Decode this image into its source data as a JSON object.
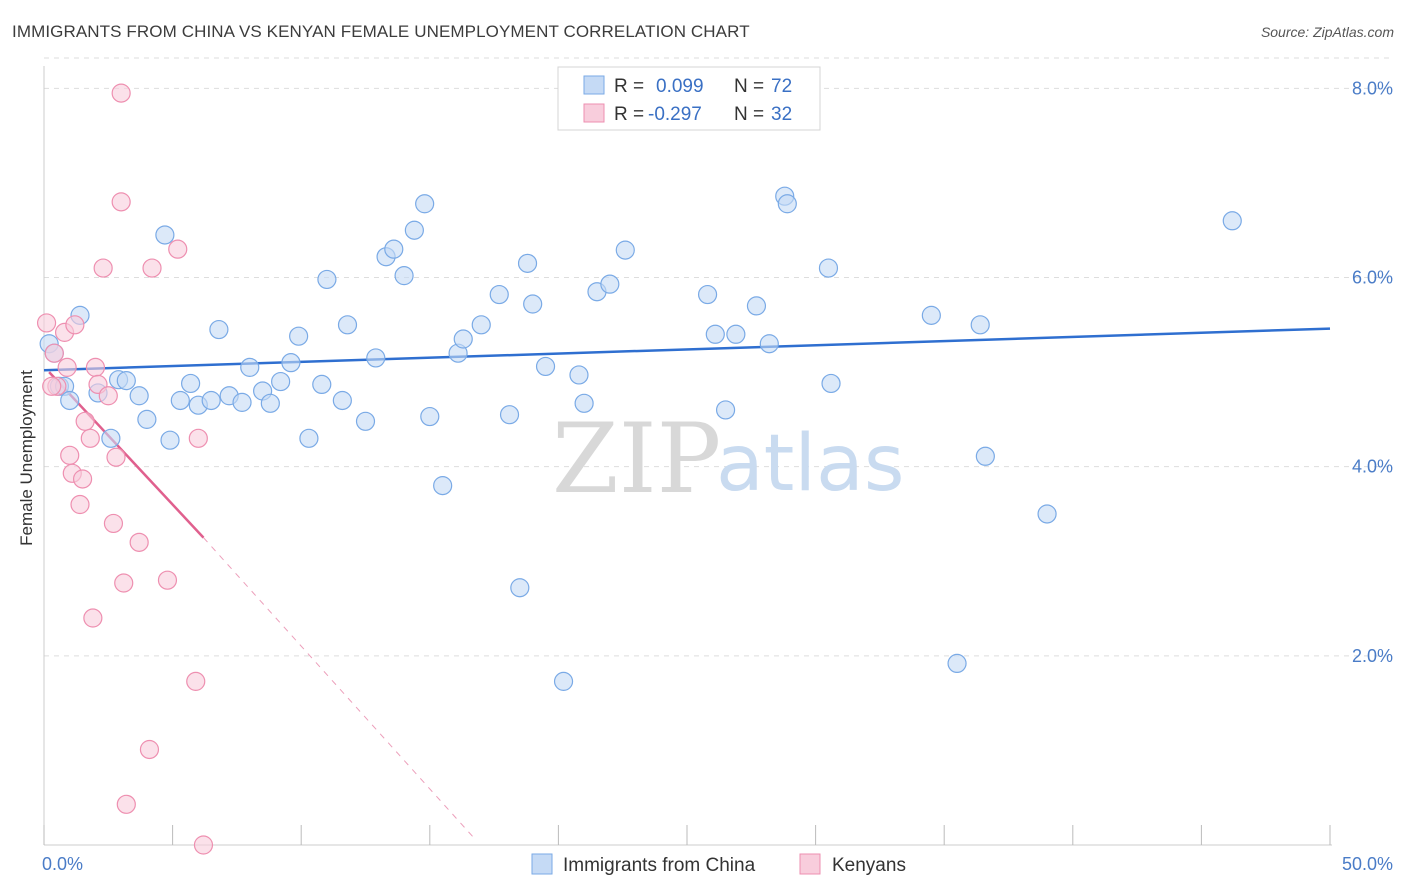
{
  "title": "IMMIGRANTS FROM CHINA VS KENYAN FEMALE UNEMPLOYMENT CORRELATION CHART",
  "source": "Source: ZipAtlas.com",
  "colors": {
    "blue": "#7aaae6",
    "blue_fill": "#c5daf5",
    "blue_line": "#2f6fd0",
    "pink": "#ee8fb0",
    "pink_fill": "#f8cddc",
    "pink_line": "#e0608e",
    "grid": "#dddddd"
  },
  "legend_top": {
    "rows": [
      {
        "r_label": "R =",
        "r_value": "0.099",
        "n_label": "N =",
        "n_value": "72"
      },
      {
        "r_label": "R =",
        "r_value": "-0.297",
        "n_label": "N =",
        "n_value": "32"
      }
    ]
  },
  "watermark": {
    "zip": "ZIP",
    "atlas": "atlas"
  },
  "chart_data": {
    "type": "scatter",
    "title": "IMMIGRANTS FROM CHINA VS KENYAN FEMALE UNEMPLOYMENT CORRELATION CHART",
    "xlabel": "",
    "ylabel": "Female Unemployment",
    "xlim": [
      0,
      50
    ],
    "ylim": [
      0,
      8.3
    ],
    "x_tick_labels": [
      "0.0%",
      "50.0%"
    ],
    "y_ticks": [
      2.0,
      4.0,
      6.0,
      8.0
    ],
    "y_tick_labels": [
      "2.0%",
      "4.0%",
      "6.0%",
      "8.0%"
    ],
    "grid": true,
    "legend_position": "bottom",
    "series": [
      {
        "name": "Immigrants from China",
        "color": "#7aaae6",
        "trend": {
          "x": [
            0,
            50
          ],
          "y": [
            5.02,
            5.46
          ]
        },
        "points": [
          [
            0.2,
            5.3
          ],
          [
            0.4,
            5.2
          ],
          [
            0.6,
            4.85
          ],
          [
            0.8,
            4.85
          ],
          [
            1.0,
            4.7
          ],
          [
            1.4,
            5.6
          ],
          [
            2.1,
            4.78
          ],
          [
            2.6,
            4.3
          ],
          [
            2.9,
            4.92
          ],
          [
            3.2,
            4.91
          ],
          [
            3.7,
            4.75
          ],
          [
            4.0,
            4.5
          ],
          [
            4.7,
            6.45
          ],
          [
            4.9,
            4.28
          ],
          [
            5.3,
            4.7
          ],
          [
            5.7,
            4.88
          ],
          [
            6.0,
            4.65
          ],
          [
            6.5,
            4.7
          ],
          [
            6.8,
            5.45
          ],
          [
            7.2,
            4.75
          ],
          [
            7.7,
            4.68
          ],
          [
            8.0,
            5.05
          ],
          [
            8.5,
            4.8
          ],
          [
            8.8,
            4.67
          ],
          [
            9.2,
            4.9
          ],
          [
            9.6,
            5.1
          ],
          [
            9.9,
            5.38
          ],
          [
            10.3,
            4.3
          ],
          [
            10.8,
            4.87
          ],
          [
            11.0,
            5.98
          ],
          [
            11.6,
            4.7
          ],
          [
            11.8,
            5.5
          ],
          [
            12.5,
            4.48
          ],
          [
            12.9,
            5.15
          ],
          [
            13.3,
            6.22
          ],
          [
            13.6,
            6.3
          ],
          [
            14.0,
            6.02
          ],
          [
            14.4,
            6.5
          ],
          [
            14.8,
            6.78
          ],
          [
            15.0,
            4.53
          ],
          [
            15.5,
            3.8
          ],
          [
            16.1,
            5.2
          ],
          [
            16.3,
            5.35
          ],
          [
            17.0,
            5.5
          ],
          [
            17.7,
            5.82
          ],
          [
            18.1,
            4.55
          ],
          [
            18.5,
            2.72
          ],
          [
            18.8,
            6.15
          ],
          [
            19.0,
            5.72
          ],
          [
            19.5,
            5.06
          ],
          [
            20.2,
            1.73
          ],
          [
            20.8,
            4.97
          ],
          [
            21.0,
            4.67
          ],
          [
            21.5,
            5.85
          ],
          [
            22.0,
            5.93
          ],
          [
            22.6,
            6.29
          ],
          [
            25.8,
            5.82
          ],
          [
            26.1,
            5.4
          ],
          [
            26.5,
            4.6
          ],
          [
            26.9,
            5.4
          ],
          [
            27.7,
            5.7
          ],
          [
            28.2,
            5.3
          ],
          [
            28.8,
            6.86
          ],
          [
            28.9,
            6.78
          ],
          [
            30.5,
            6.1
          ],
          [
            30.6,
            4.88
          ],
          [
            34.5,
            5.6
          ],
          [
            35.5,
            1.92
          ],
          [
            36.4,
            5.5
          ],
          [
            36.6,
            4.11
          ],
          [
            39.0,
            3.5
          ],
          [
            46.2,
            6.6
          ]
        ]
      },
      {
        "name": "Kenyans",
        "color": "#ee8fb0",
        "trend": {
          "x": [
            0.2,
            6.2
          ],
          "y": [
            5.0,
            3.25
          ],
          "extend_to": [
            16.7,
            0.08
          ]
        },
        "points": [
          [
            0.1,
            5.52
          ],
          [
            0.4,
            5.2
          ],
          [
            0.5,
            4.85
          ],
          [
            0.8,
            5.42
          ],
          [
            0.9,
            5.05
          ],
          [
            1.0,
            4.12
          ],
          [
            1.1,
            3.93
          ],
          [
            1.2,
            5.5
          ],
          [
            1.4,
            3.6
          ],
          [
            1.5,
            3.87
          ],
          [
            1.6,
            4.48
          ],
          [
            1.8,
            4.3
          ],
          [
            1.9,
            2.4
          ],
          [
            2.0,
            5.05
          ],
          [
            2.1,
            4.87
          ],
          [
            2.3,
            6.1
          ],
          [
            2.5,
            4.75
          ],
          [
            2.7,
            3.4
          ],
          [
            2.8,
            4.1
          ],
          [
            3.0,
            6.8
          ],
          [
            3.1,
            2.77
          ],
          [
            3.2,
            0.43
          ],
          [
            3.7,
            3.2
          ],
          [
            4.1,
            1.01
          ],
          [
            4.2,
            6.1
          ],
          [
            4.8,
            2.8
          ],
          [
            5.2,
            6.3
          ],
          [
            5.9,
            1.73
          ],
          [
            6.0,
            4.3
          ],
          [
            6.2,
            0.0
          ],
          [
            3.0,
            7.95
          ],
          [
            0.3,
            4.85
          ]
        ]
      }
    ]
  }
}
